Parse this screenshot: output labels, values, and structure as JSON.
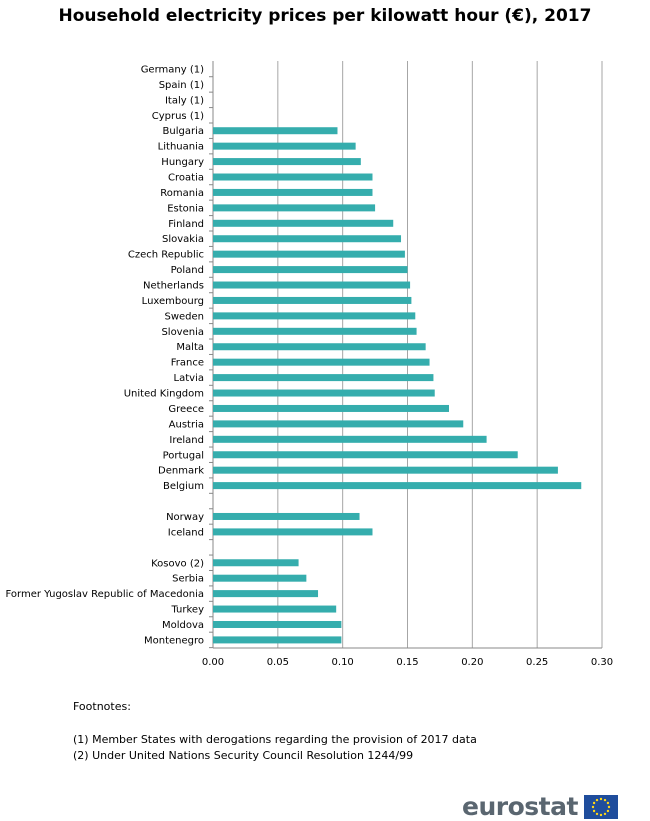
{
  "chart_data": {
    "type": "bar",
    "orientation": "horizontal",
    "title": "Household electricity prices per kilowatt hour (€), 2017",
    "xlabel": "",
    "ylabel": "",
    "xlim": [
      0,
      0.3
    ],
    "xticks": [
      "0.00",
      "0.05",
      "0.10",
      "0.15",
      "0.20",
      "0.25",
      "0.30"
    ],
    "grid": true,
    "color": "#35ADAD",
    "categories": [
      "Germany (1)",
      "Spain (1)",
      "Italy (1)",
      "Cyprus (1)",
      "Bulgaria",
      "Lithuania",
      "Hungary",
      "Croatia",
      "Romania",
      "Estonia",
      "Finland",
      "Slovakia",
      "Czech Republic",
      "Poland",
      "Netherlands",
      "Luxembourg",
      "Sweden",
      "Slovenia",
      "Malta",
      "France",
      "Latvia",
      "United Kingdom",
      "Greece",
      "Austria",
      "Ireland",
      "Portugal",
      "Denmark",
      "Belgium",
      "",
      "Norway",
      "Iceland",
      "",
      "Kosovo (2)",
      "Serbia",
      "Former Yugoslav Republic of Macedonia",
      "Turkey",
      "Moldova",
      "Montenegro"
    ],
    "values": [
      null,
      null,
      null,
      null,
      0.096,
      0.11,
      0.114,
      0.123,
      0.123,
      0.125,
      0.139,
      0.145,
      0.148,
      0.15,
      0.152,
      0.153,
      0.156,
      0.157,
      0.164,
      0.167,
      0.17,
      0.171,
      0.182,
      0.193,
      0.211,
      0.235,
      0.266,
      0.284,
      null,
      0.113,
      0.123,
      null,
      0.066,
      0.072,
      0.081,
      0.095,
      0.099,
      0.099
    ]
  },
  "footnotes": {
    "heading": "Footnotes:",
    "items": [
      "(1)  Member States with derogations regarding the provision of 2017 data",
      "(2)  Under United Nations Security Council Resolution 1244/99"
    ]
  },
  "logo": {
    "text": "eurostat"
  }
}
